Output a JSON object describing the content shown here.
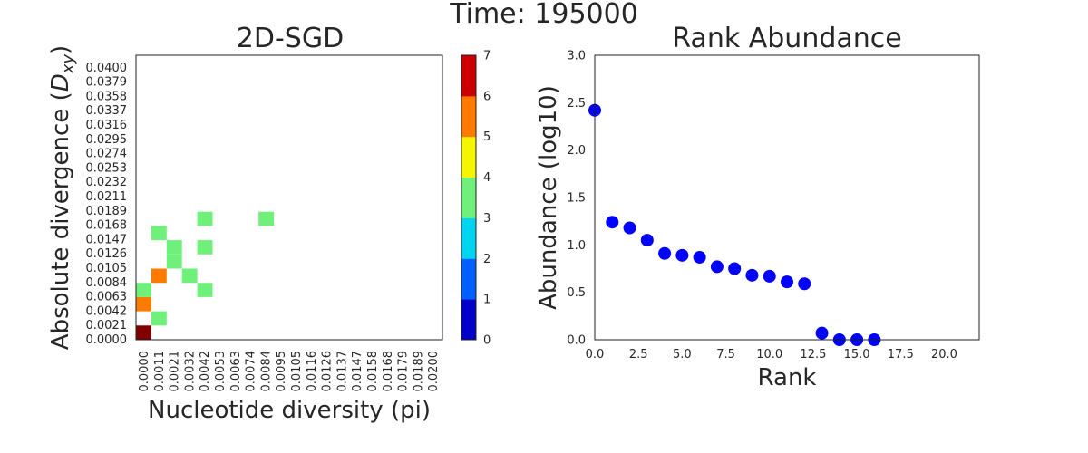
{
  "figure_title": "Time: 195000",
  "chart_data": [
    {
      "type": "heatmap",
      "title": "2D-SGD",
      "xlabel": "Nucleotide diversity (pi)",
      "ylabel_main": "Absolute divergence (",
      "ylabel_sym": "D",
      "ylabel_sub": "xy",
      "ylabel_end": ")",
      "x_ticks": [
        "0.0000",
        "0.0011",
        "0.0021",
        "0.0032",
        "0.0042",
        "0.0053",
        "0.0063",
        "0.0074",
        "0.0084",
        "0.0095",
        "0.0105",
        "0.0116",
        "0.0126",
        "0.0137",
        "0.0147",
        "0.0158",
        "0.0168",
        "0.0179",
        "0.0189",
        "0.0200"
      ],
      "y_ticks": [
        "0.0000",
        "0.0021",
        "0.0042",
        "0.0063",
        "0.0084",
        "0.0105",
        "0.0126",
        "0.0147",
        "0.0168",
        "0.0189",
        "0.0211",
        "0.0232",
        "0.0253",
        "0.0274",
        "0.0295",
        "0.0316",
        "0.0337",
        "0.0358",
        "0.0379",
        "0.0400"
      ],
      "cells": [
        {
          "x": 0,
          "y": 0,
          "value": 7
        },
        {
          "x": 1,
          "y": 1,
          "value": 3
        },
        {
          "x": 0,
          "y": 2,
          "value": 5
        },
        {
          "x": 0,
          "y": 3,
          "value": 3
        },
        {
          "x": 4,
          "y": 3,
          "value": 3
        },
        {
          "x": 1,
          "y": 4,
          "value": 5
        },
        {
          "x": 3,
          "y": 4,
          "value": 3
        },
        {
          "x": 2,
          "y": 5,
          "value": 3
        },
        {
          "x": 2,
          "y": 6,
          "value": 3
        },
        {
          "x": 4,
          "y": 6,
          "value": 3
        },
        {
          "x": 1,
          "y": 7,
          "value": 3
        },
        {
          "x": 4,
          "y": 8,
          "value": 3
        },
        {
          "x": 8,
          "y": 8,
          "value": 3
        }
      ],
      "colorbar": {
        "ticks": [
          "0",
          "1",
          "2",
          "3",
          "4",
          "5",
          "6",
          "7"
        ],
        "range": [
          0,
          7
        ],
        "bands": [
          "#0000c8",
          "#0060ff",
          "#00d4f0",
          "#6ef07a",
          "#f5f500",
          "#ff7a00",
          "#cc0000"
        ],
        "max_color": "#800000"
      }
    },
    {
      "type": "scatter",
      "title": "Rank Abundance",
      "xlabel": "Rank",
      "ylabel": "Abundance (log10)",
      "xlim": [
        0,
        22
      ],
      "ylim": [
        0,
        3
      ],
      "x_ticks": [
        "0.0",
        "2.5",
        "5.0",
        "7.5",
        "10.0",
        "12.5",
        "15.0",
        "17.5",
        "20.0"
      ],
      "y_ticks": [
        "0.0",
        "0.5",
        "1.0",
        "1.5",
        "2.0",
        "2.5",
        "3.0"
      ],
      "marker_color": "#0000ff",
      "x": [
        0,
        1,
        2,
        3,
        4,
        5,
        6,
        7,
        8,
        9,
        10,
        11,
        12,
        13,
        14,
        15,
        16
      ],
      "y": [
        2.42,
        1.24,
        1.18,
        1.05,
        0.91,
        0.89,
        0.87,
        0.77,
        0.75,
        0.68,
        0.67,
        0.61,
        0.59,
        0.07,
        0.0,
        0.0,
        0.0
      ]
    }
  ]
}
